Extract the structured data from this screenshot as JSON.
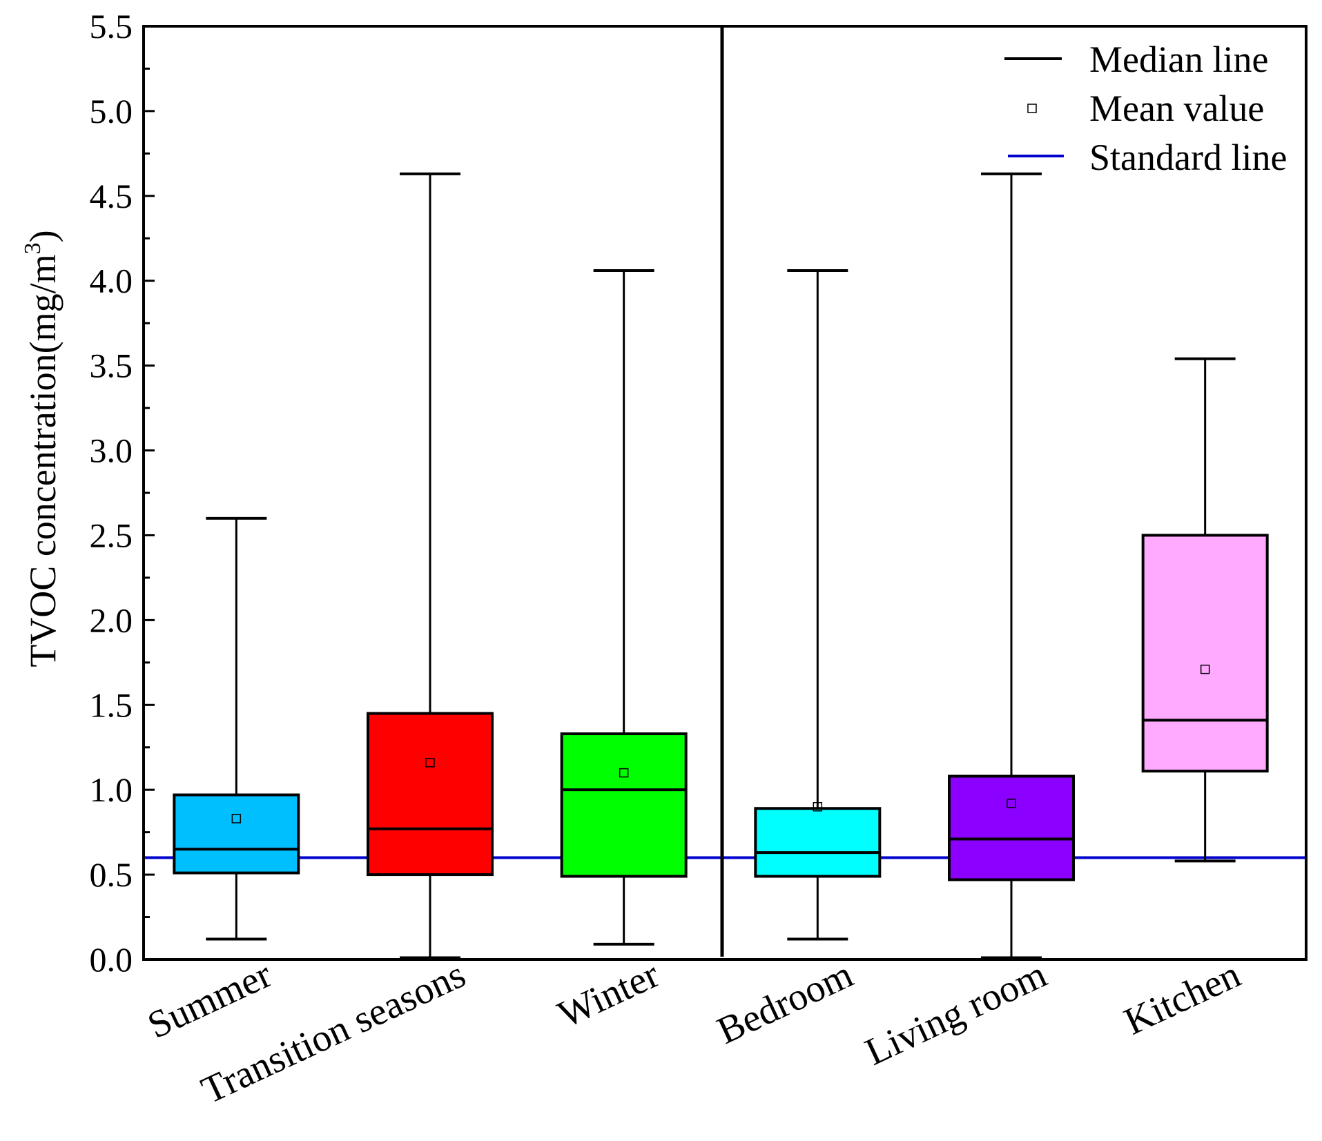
{
  "chart_data": {
    "type": "box",
    "title": "",
    "xlabel": "",
    "ylabel": "TVOC concentration(mg/m",
    "ylabel_superscript": "3",
    "ylabel_suffix": ")",
    "ylim": [
      0,
      5.5
    ],
    "ytick_values": [
      0.0,
      0.5,
      1.0,
      1.5,
      2.0,
      2.5,
      3.0,
      3.5,
      4.0,
      4.5,
      5.0,
      5.5
    ],
    "ytick_labels": [
      "0.0",
      "0.5",
      "1.0",
      "1.5",
      "2.0",
      "2.5",
      "3.0",
      "3.5",
      "4.0",
      "4.5",
      "5.0",
      "5.5"
    ],
    "standard_line_value": 0.6,
    "divider_after_index": 2,
    "legend": {
      "position": "top-right",
      "median_label": "Median line",
      "mean_label": "Mean value",
      "standard_label": "Standard line"
    },
    "categories": [
      "Summer",
      "Transition seasons",
      "Winter",
      "Bedroom",
      "Living room",
      "Kitchen"
    ],
    "series": [
      {
        "name": "Summer",
        "color": "#00BFFF",
        "whisker_low": 0.12,
        "q1": 0.51,
        "median": 0.65,
        "q3": 0.97,
        "whisker_high": 2.6,
        "mean": 0.83
      },
      {
        "name": "Transition seasons",
        "color": "#FF0000",
        "whisker_low": 0.01,
        "q1": 0.5,
        "median": 0.77,
        "q3": 1.45,
        "whisker_high": 4.63,
        "mean": 1.16
      },
      {
        "name": "Winter",
        "color": "#00FF00",
        "whisker_low": 0.09,
        "q1": 0.49,
        "median": 1.0,
        "q3": 1.33,
        "whisker_high": 4.06,
        "mean": 1.1
      },
      {
        "name": "Bedroom",
        "color": "#00FFFF",
        "whisker_low": 0.12,
        "q1": 0.49,
        "median": 0.63,
        "q3": 0.89,
        "whisker_high": 4.06,
        "mean": 0.9
      },
      {
        "name": "Living room",
        "color": "#8B00FF",
        "whisker_low": 0.01,
        "q1": 0.47,
        "median": 0.71,
        "q3": 1.08,
        "whisker_high": 4.63,
        "mean": 0.92
      },
      {
        "name": "Kitchen",
        "color": "#FFAAFF",
        "whisker_low": 0.58,
        "q1": 1.11,
        "median": 1.41,
        "q3": 2.5,
        "whisker_high": 3.54,
        "mean": 1.71
      }
    ],
    "colors": {
      "axis": "#000000",
      "standard_line": "#0000CC"
    }
  }
}
